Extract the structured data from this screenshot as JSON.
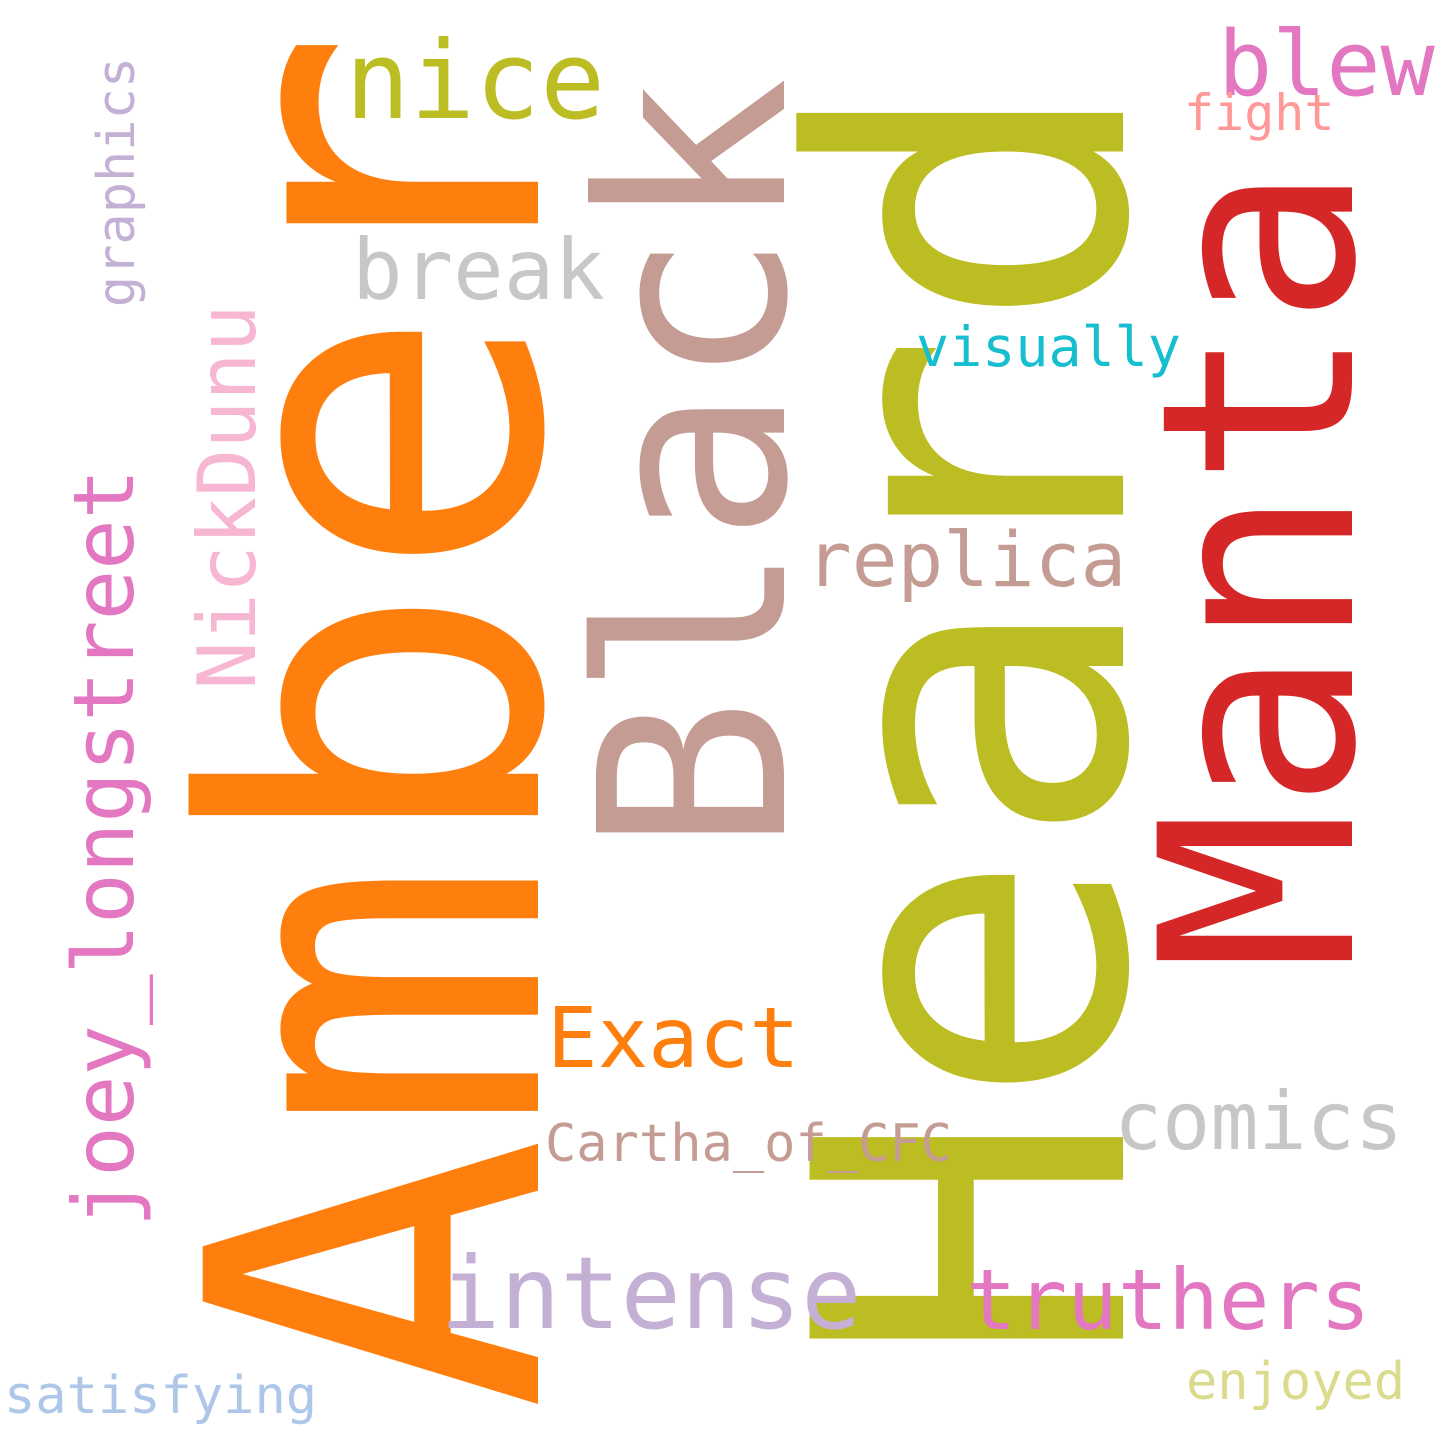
{
  "words": [
    {
      "key": "amber",
      "text": "Amber",
      "color": "#ff7f0e"
    },
    {
      "key": "heard",
      "text": "Heard",
      "color": "#bcbd22"
    },
    {
      "key": "black",
      "text": "Black",
      "color": "#c49c94"
    },
    {
      "key": "manta",
      "text": "Manta",
      "color": "#d62728"
    },
    {
      "key": "nice",
      "text": "nice",
      "color": "#bcbd22"
    },
    {
      "key": "blew",
      "text": "blew",
      "color": "#e377c2"
    },
    {
      "key": "fight",
      "text": "fight",
      "color": "#ff9896"
    },
    {
      "key": "break",
      "text": "break",
      "color": "#c7c7c7"
    },
    {
      "key": "visually",
      "text": "visually",
      "color": "#17becf"
    },
    {
      "key": "replica",
      "text": "replica",
      "color": "#c49c94"
    },
    {
      "key": "graphics",
      "text": "graphics",
      "color": "#c5b0d5"
    },
    {
      "key": "nickdunu",
      "text": "NickDunu",
      "color": "#f7b6d2"
    },
    {
      "key": "joey",
      "text": "joey_longstreet",
      "color": "#e377c2"
    },
    {
      "key": "exact",
      "text": "Exact",
      "color": "#ff7f0e"
    },
    {
      "key": "comics",
      "text": "comics",
      "color": "#c7c7c7"
    },
    {
      "key": "cartha",
      "text": "Cartha_of_CFC",
      "color": "#c49c94"
    },
    {
      "key": "intense",
      "text": "intense",
      "color": "#c5b0d5"
    },
    {
      "key": "truthers",
      "text": "truthers",
      "color": "#e377c2"
    },
    {
      "key": "satisfying",
      "text": "satisfying",
      "color": "#aec7e8"
    },
    {
      "key": "enjoyed",
      "text": "enjoyed",
      "color": "#dbdb8d"
    }
  ]
}
